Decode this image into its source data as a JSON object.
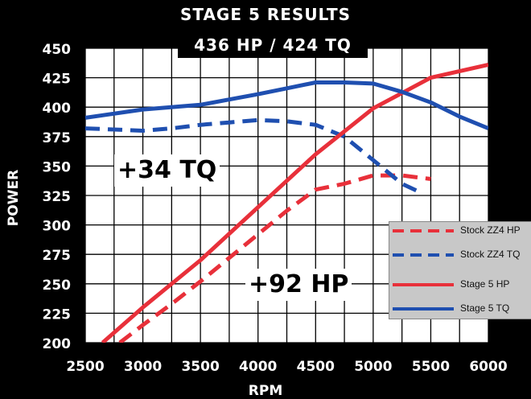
{
  "chart_data": {
    "type": "line",
    "title": "STAGE 5 RESULTS",
    "subtitle": "436 HP / 424 TQ",
    "xlabel": "RPM",
    "ylabel": "POWER",
    "xlim": [
      2500,
      6000
    ],
    "ylim": [
      200,
      450
    ],
    "xticks": [
      "2500",
      "3000",
      "3500",
      "4000",
      "4500",
      "5000",
      "5500",
      "6000"
    ],
    "yticks": [
      "200",
      "225",
      "250",
      "275",
      "300",
      "325",
      "350",
      "375",
      "400",
      "425",
      "450"
    ],
    "grid": true,
    "legend_position": "right",
    "series": [
      {
        "name": "Stock ZZ4 HP",
        "color": "#e8303a",
        "style": "dashed",
        "x": [
          2800,
          3000,
          3250,
          3500,
          3750,
          4000,
          4250,
          4500,
          4750,
          5000,
          5250,
          5500
        ],
        "y": [
          200,
          215,
          233,
          252,
          272,
          292,
          312,
          330,
          335,
          342,
          342,
          339
        ]
      },
      {
        "name": "Stock ZZ4 TQ",
        "color": "#1f4fb0",
        "style": "dashed",
        "x": [
          2500,
          2750,
          3000,
          3250,
          3500,
          3750,
          4000,
          4250,
          4500,
          4750,
          5000,
          5250,
          5400
        ],
        "y": [
          382,
          381,
          380,
          382,
          385,
          387,
          389,
          388,
          385,
          375,
          355,
          335,
          328
        ]
      },
      {
        "name": "Stage 5 HP",
        "color": "#e8303a",
        "style": "solid",
        "x": [
          2650,
          3000,
          3500,
          4000,
          4500,
          5000,
          5500,
          6000
        ],
        "y": [
          200,
          230,
          270,
          315,
          360,
          399,
          425,
          436
        ]
      },
      {
        "name": "Stage 5 TQ",
        "color": "#1f4fb0",
        "style": "solid",
        "x": [
          2500,
          3000,
          3500,
          4000,
          4250,
          4500,
          4750,
          5000,
          5250,
          5500,
          5750,
          6000
        ],
        "y": [
          391,
          398,
          402,
          411,
          416,
          421,
          421,
          420,
          413,
          404,
          392,
          382
        ]
      }
    ]
  },
  "annotations": {
    "tq_gain": "+34 TQ",
    "hp_gain": "+92 HP"
  },
  "legend": [
    {
      "label": "Stock ZZ4 HP",
      "color": "#e8303a",
      "style": "dashed"
    },
    {
      "label": "Stock ZZ4 TQ",
      "color": "#1f4fb0",
      "style": "dashed"
    },
    {
      "label": "Stage 5 HP",
      "color": "#e8303a",
      "style": "solid"
    },
    {
      "label": "Stage 5 TQ",
      "color": "#1f4fb0",
      "style": "solid"
    }
  ]
}
